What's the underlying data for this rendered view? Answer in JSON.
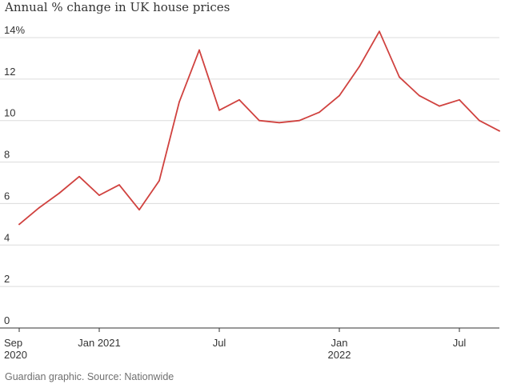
{
  "title": "Annual % change in UK house prices",
  "source": "Guardian graphic. Source: Nationwide",
  "colors": {
    "line": "#d0423f",
    "grid": "#dcdcdc",
    "axis": "#333333",
    "text": "#333333",
    "source_text": "#707070"
  },
  "chart_data": {
    "type": "line",
    "title": "Annual % change in UK house prices",
    "xlabel": "",
    "ylabel": "",
    "ylim": [
      0,
      14
    ],
    "grid": true,
    "y_ticks": [
      0,
      2,
      4,
      6,
      8,
      10,
      12,
      14
    ],
    "y_tick_labels": [
      "0",
      "2",
      "4",
      "6",
      "8",
      "10",
      "12",
      "14%"
    ],
    "x": [
      "2020-09",
      "2020-10",
      "2020-11",
      "2020-12",
      "2021-01",
      "2021-02",
      "2021-03",
      "2021-04",
      "2021-05",
      "2021-06",
      "2021-07",
      "2021-08",
      "2021-09",
      "2021-10",
      "2021-11",
      "2021-12",
      "2022-01",
      "2022-02",
      "2022-03",
      "2022-04",
      "2022-05",
      "2022-06",
      "2022-07",
      "2022-08",
      "2022-09"
    ],
    "x_ticks": [
      {
        "x": "2020-09",
        "lines": [
          "Sep",
          "2020"
        ]
      },
      {
        "x": "2021-01",
        "lines": [
          "Jan 2021"
        ]
      },
      {
        "x": "2021-07",
        "lines": [
          "Jul"
        ]
      },
      {
        "x": "2022-01",
        "lines": [
          "Jan",
          "2022"
        ]
      },
      {
        "x": "2022-07",
        "lines": [
          "Jul"
        ]
      }
    ],
    "series": [
      {
        "values": [
          5.0,
          5.8,
          6.5,
          7.3,
          6.4,
          6.9,
          5.7,
          7.1,
          10.9,
          13.4,
          10.5,
          11.0,
          10.0,
          9.9,
          10.0,
          10.4,
          11.2,
          12.6,
          14.3,
          12.1,
          11.2,
          10.7,
          11.0,
          10.0,
          9.5
        ]
      }
    ]
  }
}
